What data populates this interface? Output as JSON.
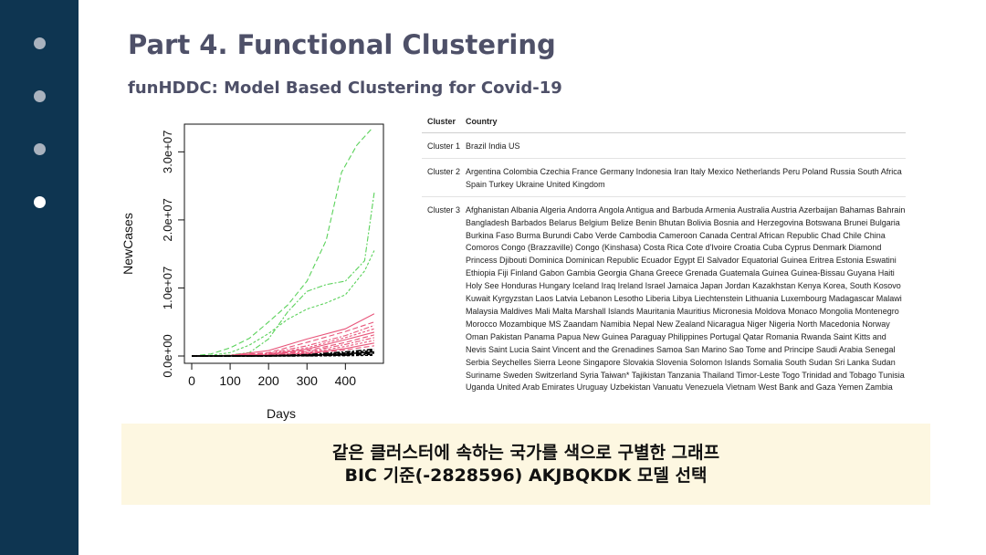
{
  "slide": {
    "title": "Part 4. Functional Clustering",
    "subtitle": "funHDDC: Model Based Clustering for Covid-19",
    "caption_line1": "같은 클러스터에 속하는 국가를 색으로 구별한 그래프",
    "caption_line2": "BIC 기준(-2828596) AKJBQKDK 모델 선택"
  },
  "nav_dots": [
    {
      "index": 1,
      "active": false
    },
    {
      "index": 2,
      "active": false
    },
    {
      "index": 3,
      "active": false
    },
    {
      "index": 4,
      "active": true
    }
  ],
  "chart_data": {
    "type": "line",
    "xlabel": "Days",
    "ylabel": "NewCases",
    "xlim": [
      0,
      480
    ],
    "ylim": [
      0,
      33000000
    ],
    "x_ticks": [
      {
        "value": 0,
        "label": "0"
      },
      {
        "value": 100,
        "label": "100"
      },
      {
        "value": 200,
        "label": "200"
      },
      {
        "value": 300,
        "label": "300"
      },
      {
        "value": 400,
        "label": "400"
      }
    ],
    "y_ticks": [
      {
        "value": 0,
        "label": "0.0e+00"
      },
      {
        "value": 10000000,
        "label": "1.0e+07"
      },
      {
        "value": 20000000,
        "label": "2.0e+07"
      },
      {
        "value": 30000000,
        "label": "3.0e+07"
      }
    ],
    "colors": {
      "cluster1": "#5bd25b",
      "cluster2": "#e8557a",
      "cluster3": "#000000"
    },
    "series": [
      {
        "cluster": 1,
        "x": [
          0,
          50,
          100,
          150,
          200,
          250,
          300,
          350,
          390,
          430,
          470
        ],
        "y": [
          0,
          300000,
          1200000,
          2600000,
          5000000,
          7500000,
          11000000,
          17000000,
          27000000,
          31000000,
          33500000
        ]
      },
      {
        "cluster": 1,
        "x": [
          0,
          50,
          100,
          150,
          200,
          250,
          300,
          350,
          400,
          450,
          475
        ],
        "y": [
          0,
          30000,
          150000,
          500000,
          2500000,
          6500000,
          9500000,
          10500000,
          11000000,
          14000000,
          24000000
        ]
      },
      {
        "cluster": 1,
        "x": [
          0,
          50,
          100,
          150,
          200,
          250,
          300,
          350,
          400,
          450,
          475
        ],
        "y": [
          0,
          100000,
          500000,
          1600000,
          3300000,
          5400000,
          6900000,
          7800000,
          9000000,
          12500000,
          15500000
        ]
      },
      {
        "cluster": 2,
        "x": [
          0,
          100,
          200,
          300,
          400,
          475
        ],
        "y": [
          0,
          100000,
          800000,
          2500000,
          4000000,
          6200000
        ]
      },
      {
        "cluster": 2,
        "x": [
          0,
          100,
          200,
          300,
          400,
          475
        ],
        "y": [
          0,
          80000,
          500000,
          2000000,
          3600000,
          5000000
        ]
      },
      {
        "cluster": 2,
        "x": [
          0,
          100,
          200,
          300,
          400,
          475
        ],
        "y": [
          0,
          60000,
          400000,
          1500000,
          3000000,
          4500000
        ]
      },
      {
        "cluster": 2,
        "x": [
          0,
          100,
          200,
          300,
          400,
          475
        ],
        "y": [
          0,
          50000,
          300000,
          1200000,
          2700000,
          4000000
        ]
      },
      {
        "cluster": 2,
        "x": [
          0,
          100,
          200,
          300,
          400,
          475
        ],
        "y": [
          0,
          40000,
          250000,
          1000000,
          2400000,
          3500000
        ]
      },
      {
        "cluster": 2,
        "x": [
          0,
          100,
          200,
          300,
          400,
          475
        ],
        "y": [
          0,
          30000,
          200000,
          800000,
          2000000,
          3100000
        ]
      },
      {
        "cluster": 2,
        "x": [
          0,
          100,
          200,
          300,
          400,
          475
        ],
        "y": [
          0,
          20000,
          150000,
          650000,
          1700000,
          2700000
        ]
      },
      {
        "cluster": 2,
        "x": [
          0,
          100,
          200,
          300,
          400,
          475
        ],
        "y": [
          0,
          15000,
          100000,
          500000,
          1400000,
          2300000
        ]
      },
      {
        "cluster": 2,
        "x": [
          0,
          100,
          200,
          300,
          400,
          475
        ],
        "y": [
          0,
          10000,
          80000,
          400000,
          1100000,
          1900000
        ]
      },
      {
        "cluster": 2,
        "x": [
          0,
          100,
          200,
          300,
          400,
          475
        ],
        "y": [
          0,
          8000,
          60000,
          300000,
          900000,
          1500000
        ]
      },
      {
        "cluster": 3,
        "x": [
          0,
          100,
          200,
          300,
          400,
          475
        ],
        "y": [
          0,
          5000,
          40000,
          200000,
          600000,
          1000000
        ]
      },
      {
        "cluster": 3,
        "x": [
          0,
          100,
          200,
          300,
          400,
          475
        ],
        "y": [
          0,
          4000,
          30000,
          150000,
          450000,
          800000
        ]
      },
      {
        "cluster": 3,
        "x": [
          0,
          100,
          200,
          300,
          400,
          475
        ],
        "y": [
          0,
          3000,
          20000,
          100000,
          320000,
          600000
        ]
      },
      {
        "cluster": 3,
        "x": [
          0,
          100,
          200,
          300,
          400,
          475
        ],
        "y": [
          0,
          2000,
          15000,
          70000,
          220000,
          420000
        ]
      },
      {
        "cluster": 3,
        "x": [
          0,
          100,
          200,
          300,
          400,
          475
        ],
        "y": [
          0,
          1000,
          8000,
          40000,
          130000,
          250000
        ]
      },
      {
        "cluster": 3,
        "x": [
          0,
          100,
          200,
          300,
          400,
          475
        ],
        "y": [
          0,
          500,
          4000,
          20000,
          60000,
          120000
        ]
      }
    ]
  },
  "table": {
    "headers": [
      "Cluster",
      "Country"
    ],
    "rows": [
      {
        "cluster": "Cluster 1",
        "countries": "Brazil India US"
      },
      {
        "cluster": "Cluster 2",
        "countries": "Argentina Colombia Czechia France Germany Indonesia Iran Italy Mexico Netherlands Peru Poland Russia South Africa Spain Turkey Ukraine United Kingdom"
      },
      {
        "cluster": "Cluster 3",
        "countries": "Afghanistan Albania Algeria Andorra Angola Antigua and Barbuda Armenia Australia Austria Azerbaijan Bahamas Bahrain Bangladesh Barbados Belarus Belgium Belize Benin Bhutan Bolivia Bosnia and Herzegovina Botswana Brunei Bulgaria Burkina Faso Burma Burundi Cabo Verde Cambodia Cameroon Canada Central African Republic Chad Chile China Comoros Congo (Brazzaville) Congo (Kinshasa) Costa Rica Cote d'Ivoire Croatia Cuba Cyprus Denmark Diamond Princess Djibouti Dominica Dominican Republic Ecuador Egypt El Salvador Equatorial Guinea Eritrea Estonia Eswatini Ethiopia Fiji Finland Gabon Gambia Georgia Ghana Greece Grenada Guatemala Guinea Guinea-Bissau Guyana Haiti Holy See Honduras Hungary Iceland Iraq Ireland Israel Jamaica Japan Jordan Kazakhstan Kenya Korea, South Kosovo Kuwait Kyrgyzstan Laos Latvia Lebanon Lesotho Liberia Libya Liechtenstein Lithuania Luxembourg Madagascar Malawi Malaysia Maldives Mali Malta Marshall Islands Mauritania Mauritius Micronesia Moldova Monaco Mongolia Montenegro Morocco Mozambique MS Zaandam Namibia Nepal New Zealand Nicaragua Niger Nigeria North Macedonia Norway Oman Pakistan Panama Papua New Guinea Paraguay Philippines Portugal Qatar Romania Rwanda Saint Kitts and Nevis Saint Lucia Saint Vincent and the Grenadines Samoa San Marino Sao Tome and Principe Saudi Arabia Senegal Serbia Seychelles Sierra Leone Singapore Slovakia Slovenia Solomon Islands Somalia South Sudan Sri Lanka Sudan Suriname Sweden Switzerland Syria Taiwan* Tajikistan Tanzania Thailand Timor-Leste Togo Trinidad and Tobago Tunisia Uganda United Arab Emirates Uruguay Uzbekistan Vanuatu Venezuela Vietnam West Bank and Gaza Yemen Zambia"
      }
    ]
  }
}
